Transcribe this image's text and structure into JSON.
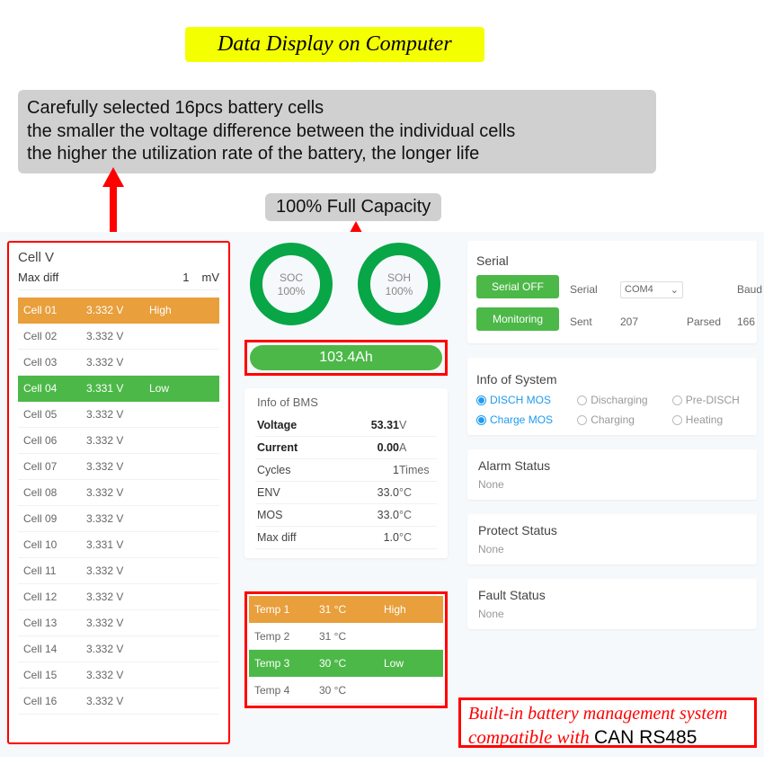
{
  "banner_title": "Data Display on Computer",
  "description": {
    "l1": "Carefully selected 16pcs battery cells",
    "l2": "the smaller the voltage difference between the individual cells",
    "l3": "the higher the utilization rate of the battery, the longer life"
  },
  "capacity_callout": "100% Full Capacity",
  "colors": {
    "accent_green": "#4cb848",
    "accent_orange": "#e89f3c",
    "ring_green": "#08a646",
    "red": "#ff0000",
    "yellow": "#f4ff00",
    "grey_box": "#d0d0d0",
    "app_bg": "#f6f9fb",
    "link_blue": "#1d9bf0"
  },
  "cellv": {
    "title": "Cell V",
    "maxdiff_label": "Max diff",
    "maxdiff_value": "1",
    "maxdiff_unit": "mV",
    "rows": [
      {
        "name": "Cell 01",
        "v": "3.332 V",
        "flag": "High",
        "cls": "high"
      },
      {
        "name": "Cell 02",
        "v": "3.332 V",
        "flag": "",
        "cls": ""
      },
      {
        "name": "Cell 03",
        "v": "3.332 V",
        "flag": "",
        "cls": ""
      },
      {
        "name": "Cell 04",
        "v": "3.331 V",
        "flag": "Low",
        "cls": "low"
      },
      {
        "name": "Cell 05",
        "v": "3.332 V",
        "flag": "",
        "cls": ""
      },
      {
        "name": "Cell 06",
        "v": "3.332 V",
        "flag": "",
        "cls": ""
      },
      {
        "name": "Cell 07",
        "v": "3.332 V",
        "flag": "",
        "cls": ""
      },
      {
        "name": "Cell 08",
        "v": "3.332 V",
        "flag": "",
        "cls": ""
      },
      {
        "name": "Cell 09",
        "v": "3.332 V",
        "flag": "",
        "cls": ""
      },
      {
        "name": "Cell 10",
        "v": "3.331 V",
        "flag": "",
        "cls": ""
      },
      {
        "name": "Cell 11",
        "v": "3.332 V",
        "flag": "",
        "cls": ""
      },
      {
        "name": "Cell 12",
        "v": "3.332 V",
        "flag": "",
        "cls": ""
      },
      {
        "name": "Cell 13",
        "v": "3.332 V",
        "flag": "",
        "cls": ""
      },
      {
        "name": "Cell 14",
        "v": "3.332 V",
        "flag": "",
        "cls": ""
      },
      {
        "name": "Cell 15",
        "v": "3.332 V",
        "flag": "",
        "cls": ""
      },
      {
        "name": "Cell 16",
        "v": "3.332 V",
        "flag": "",
        "cls": ""
      }
    ]
  },
  "gauges": {
    "soc": {
      "label": "SOC",
      "value": "100%"
    },
    "soh": {
      "label": "SOH",
      "value": "100%"
    }
  },
  "capacity_value": "103.4Ah",
  "bms": {
    "title": "Info of BMS",
    "rows": [
      {
        "label": "Voltage",
        "val": "53.31",
        "unit": "V",
        "bold": true
      },
      {
        "label": "Current",
        "val": "0.00",
        "unit": "A",
        "bold": true
      },
      {
        "label": "Cycles",
        "val": "1",
        "unit": "Times",
        "bold": false
      },
      {
        "label": "ENV",
        "val": "33.0",
        "unit": "°C",
        "bold": false
      },
      {
        "label": "MOS",
        "val": "33.0",
        "unit": "°C",
        "bold": false
      },
      {
        "label": "Max diff",
        "val": "1.0",
        "unit": "°C",
        "bold": false
      }
    ]
  },
  "temps": [
    {
      "name": "Temp 1",
      "v": "31 °C",
      "flag": "High",
      "cls": "high"
    },
    {
      "name": "Temp 2",
      "v": "31 °C",
      "flag": "",
      "cls": ""
    },
    {
      "name": "Temp 3",
      "v": "30 °C",
      "flag": "Low",
      "cls": "low"
    },
    {
      "name": "Temp 4",
      "v": "30 °C",
      "flag": "",
      "cls": ""
    }
  ],
  "serial": {
    "title": "Serial",
    "btn_off": "Serial OFF",
    "btn_mon": "Monitoring",
    "serial_label": "Serial",
    "port": "COM4",
    "baud_label": "Baud r",
    "sent_label": "Sent",
    "sent_val": "207",
    "parsed_label": "Parsed",
    "parsed_val": "166"
  },
  "info_sys": {
    "title": "Info of System",
    "items": [
      {
        "label": "DISCH MOS",
        "on": true
      },
      {
        "label": "Discharging",
        "on": false
      },
      {
        "label": "Pre-DISCH",
        "on": false
      },
      {
        "label": "Charge MOS",
        "on": true
      },
      {
        "label": "Charging",
        "on": false
      },
      {
        "label": "Heating",
        "on": false
      }
    ]
  },
  "alarm": {
    "title": "Alarm Status",
    "value": "None"
  },
  "protect": {
    "title": "Protect Status",
    "value": "None"
  },
  "fault": {
    "title": "Fault Status",
    "value": "None"
  },
  "red_callout": {
    "l1": "Built-in battery management system",
    "l2a": "compatible with ",
    "l2b": "CAN RS485"
  }
}
